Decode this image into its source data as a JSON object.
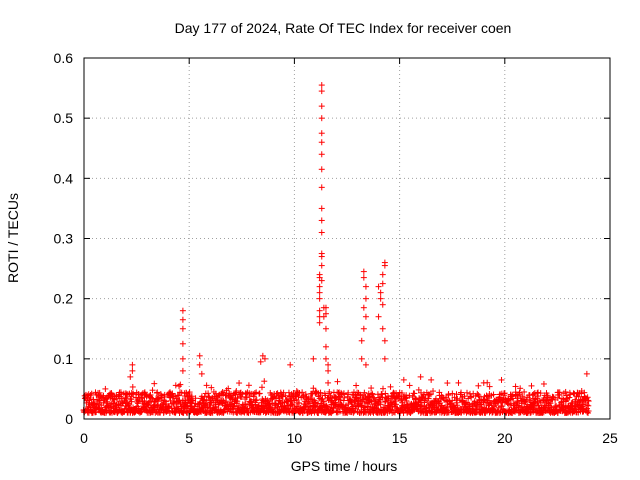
{
  "chart_data": {
    "type": "scatter",
    "title": "Day 177 of 2024, Rate Of TEC Index for receiver coen",
    "xlabel": "GPS time / hours",
    "ylabel": "ROTI / TECUs",
    "xlim": [
      0,
      25
    ],
    "ylim": [
      0,
      0.6
    ],
    "xticks": [
      0,
      5,
      10,
      15,
      20,
      25
    ],
    "yticks": [
      0,
      0.1,
      0.2,
      0.3,
      0.4,
      0.5,
      0.6
    ],
    "xtick_labels": [
      "0",
      "5",
      "10",
      "15",
      "20",
      "25"
    ],
    "ytick_labels": [
      "0",
      "0.1",
      "0.2",
      "0.3",
      "0.4",
      "0.5",
      "0.6"
    ],
    "grid": true,
    "marker": "plus",
    "color": "#ff0000",
    "baseline": {
      "x_range": [
        0,
        24
      ],
      "typical_range": [
        0.01,
        0.045
      ],
      "note": "dense band of ROTI values throughout the day"
    },
    "series": [
      {
        "name": "ROTI",
        "x": [
          4.7,
          4.7,
          4.7,
          4.7,
          4.7,
          4.7,
          5.5,
          5.5,
          5.6,
          2.3,
          2.3,
          2.2,
          8.5,
          8.6,
          8.4,
          9.8,
          10.9,
          11.2,
          11.2,
          11.3,
          11.3,
          11.3,
          11.3,
          11.3,
          11.3,
          11.3,
          11.3,
          11.3,
          11.3,
          11.3,
          11.3,
          11.3,
          11.3,
          11.3,
          11.3,
          11.2,
          11.2,
          11.2,
          11.2,
          11.2,
          11.2,
          11.4,
          11.4,
          11.5,
          11.5,
          11.5,
          11.5,
          11.5,
          11.6,
          11.6,
          11.6,
          13.3,
          13.3,
          13.4,
          13.4,
          13.3,
          13.4,
          13.3,
          13.2,
          13.2,
          13.4,
          14.0,
          14.1,
          14.2,
          14.3,
          14.3,
          14.2,
          14.1,
          14.2,
          14.0,
          14.2,
          14.3,
          14.3,
          15.2,
          16.0,
          16.5,
          17.8,
          19.0,
          23.9
        ],
        "y": [
          0.18,
          0.165,
          0.15,
          0.125,
          0.1,
          0.08,
          0.105,
          0.09,
          0.075,
          0.09,
          0.08,
          0.07,
          0.105,
          0.1,
          0.095,
          0.09,
          0.1,
          0.24,
          0.235,
          0.555,
          0.545,
          0.52,
          0.5,
          0.475,
          0.46,
          0.44,
          0.415,
          0.385,
          0.35,
          0.33,
          0.31,
          0.275,
          0.27,
          0.255,
          0.23,
          0.22,
          0.21,
          0.2,
          0.18,
          0.17,
          0.16,
          0.185,
          0.17,
          0.185,
          0.175,
          0.15,
          0.12,
          0.1,
          0.09,
          0.08,
          0.06,
          0.245,
          0.235,
          0.22,
          0.2,
          0.185,
          0.17,
          0.15,
          0.13,
          0.1,
          0.09,
          0.22,
          0.2,
          0.24,
          0.26,
          0.255,
          0.225,
          0.21,
          0.19,
          0.17,
          0.15,
          0.13,
          0.1,
          0.065,
          0.07,
          0.065,
          0.06,
          0.06,
          0.075
        ]
      }
    ]
  }
}
